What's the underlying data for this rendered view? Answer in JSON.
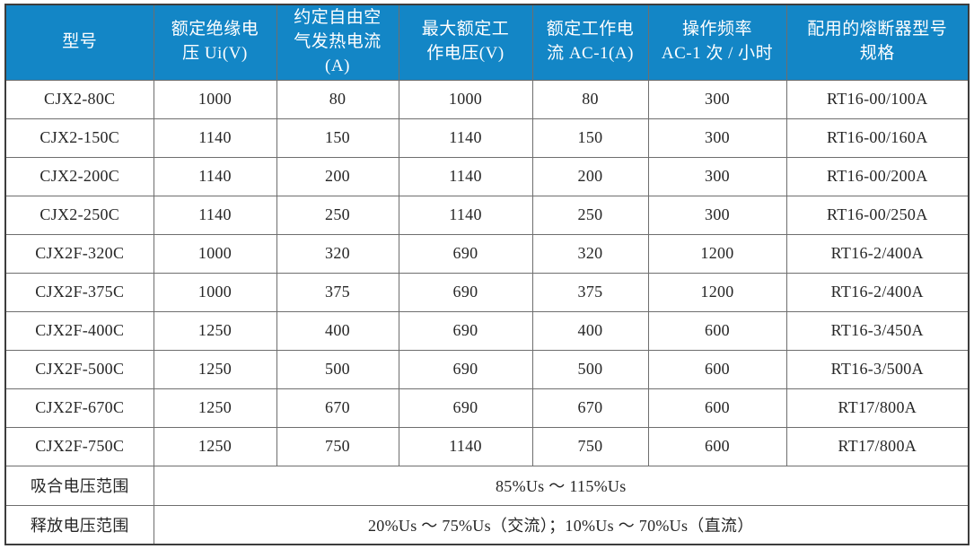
{
  "colors": {
    "header_bg": "#1386C6",
    "header_text": "#FFFFFF",
    "grid_line": "#6E6E6E",
    "outer_border": "#3D3D3D",
    "body_text": "#262626"
  },
  "table": {
    "columns": [
      "型号",
      "额定绝缘电\n压 Ui(V)",
      "约定自由空\n气发热电流\n(A)",
      "最大额定工\n作电压(V)",
      "额定工作电\n流 AC-1(A)",
      "操作频率\nAC-1 次 / 小时",
      "配用的熔断器型号\n规格"
    ],
    "rows": [
      [
        "CJX2-80C",
        "1000",
        "80",
        "1000",
        "80",
        "300",
        "RT16-00/100A"
      ],
      [
        "CJX2-150C",
        "1140",
        "150",
        "1140",
        "150",
        "300",
        "RT16-00/160A"
      ],
      [
        "CJX2-200C",
        "1140",
        "200",
        "1140",
        "200",
        "300",
        "RT16-00/200A"
      ],
      [
        "CJX2-250C",
        "1140",
        "250",
        "1140",
        "250",
        "300",
        "RT16-00/250A"
      ],
      [
        "CJX2F-320C",
        "1000",
        "320",
        "690",
        "320",
        "1200",
        "RT16-2/400A"
      ],
      [
        "CJX2F-375C",
        "1000",
        "375",
        "690",
        "375",
        "1200",
        "RT16-2/400A"
      ],
      [
        "CJX2F-400C",
        "1250",
        "400",
        "690",
        "400",
        "600",
        "RT16-3/450A"
      ],
      [
        "CJX2F-500C",
        "1250",
        "500",
        "690",
        "500",
        "600",
        "RT16-3/500A"
      ],
      [
        "CJX2F-670C",
        "1250",
        "670",
        "690",
        "670",
        "600",
        "RT17/800A"
      ],
      [
        "CJX2F-750C",
        "1250",
        "750",
        "1140",
        "750",
        "600",
        "RT17/800A"
      ]
    ],
    "footer_rows": [
      {
        "label": "吸合电压范围",
        "value": "85%Us ～ 115%Us"
      },
      {
        "label": "释放电压范围",
        "value": "20%Us ～ 75%Us（交流）；10%Us ～ 70%Us（直流）"
      }
    ]
  }
}
